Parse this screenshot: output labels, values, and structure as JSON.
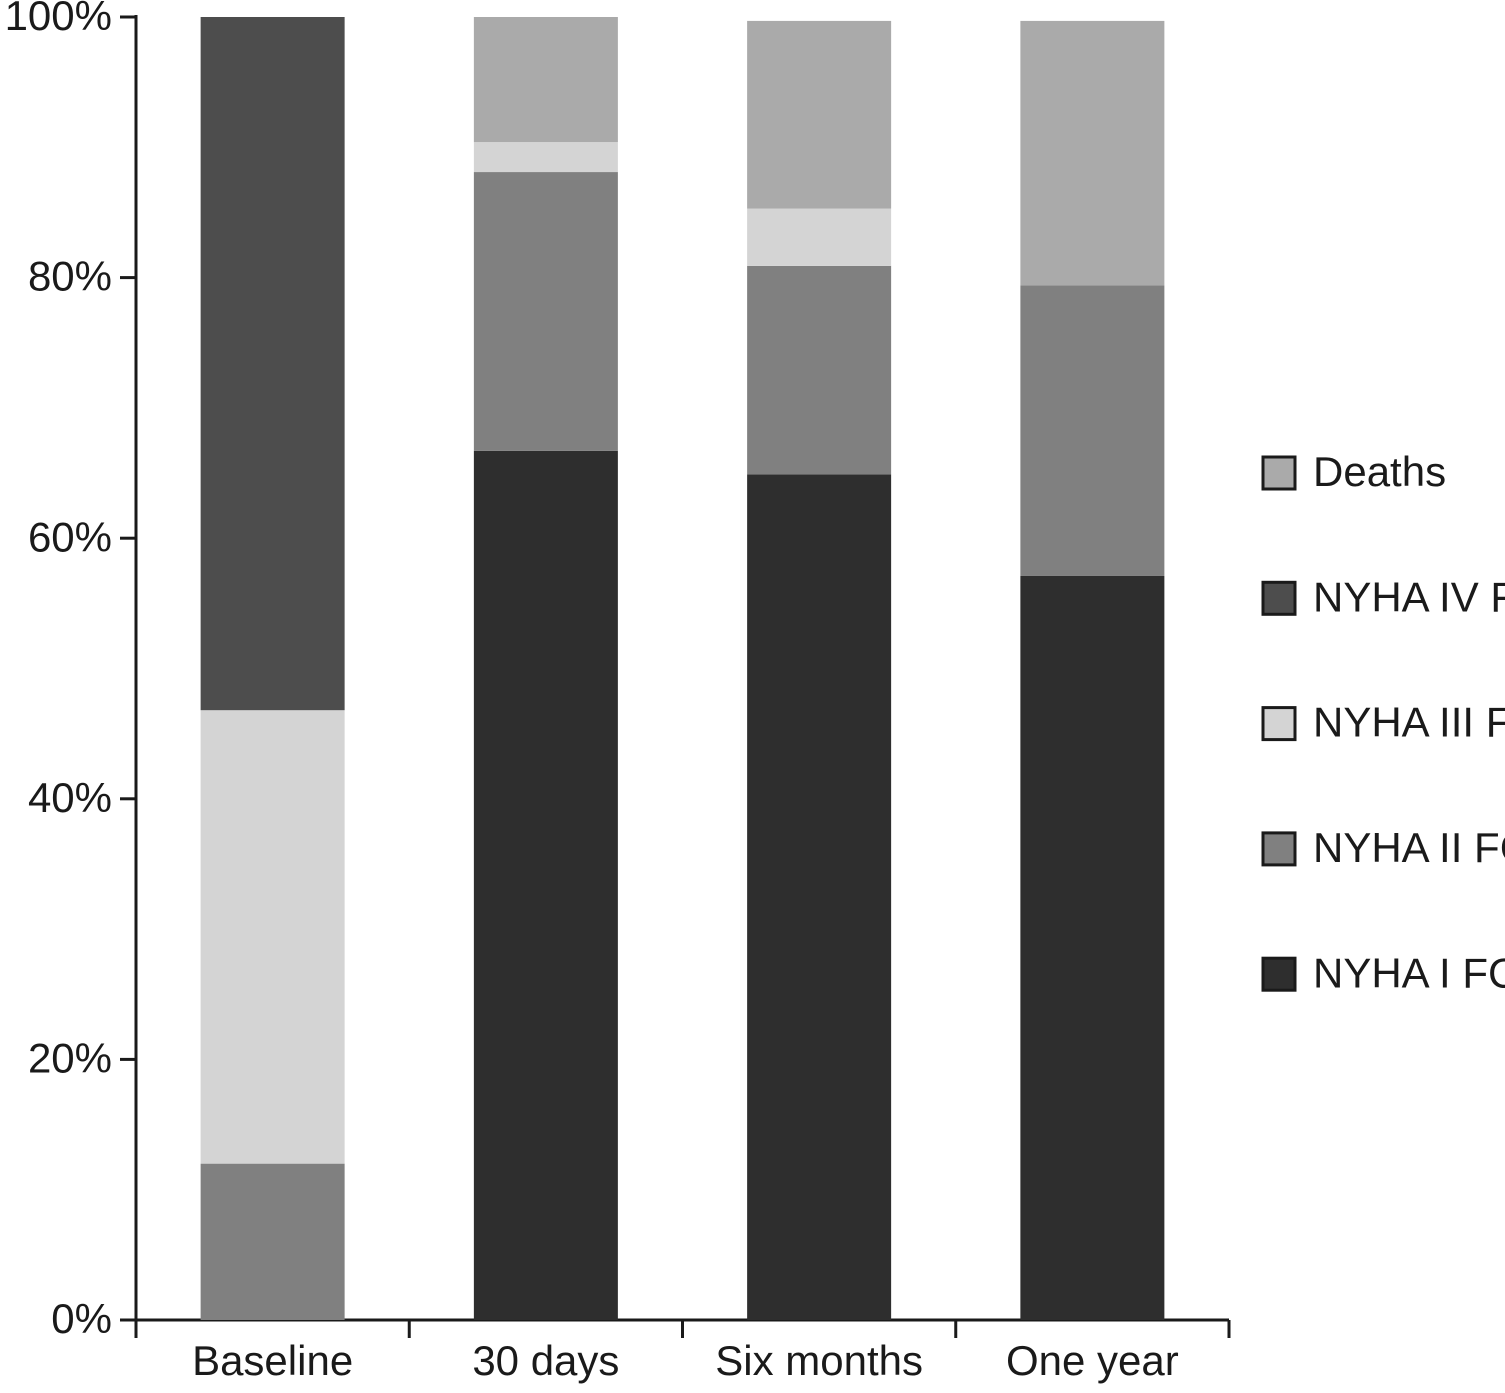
{
  "chart_data": {
    "type": "stacked-bar",
    "categories": [
      "Baseline",
      "30 days",
      "Six months",
      "One year"
    ],
    "series": [
      {
        "name": "NYHA I FC",
        "color": "#2e2e2e",
        "values": [
          0,
          66.7,
          64.9,
          57.1
        ]
      },
      {
        "name": "NYHA II FC",
        "color": "#808080",
        "values": [
          12.0,
          21.4,
          16.0,
          22.3
        ]
      },
      {
        "name": "NYHA III FC",
        "color": "#d4d4d4",
        "values": [
          34.8,
          2.3,
          4.4,
          0
        ]
      },
      {
        "name": "NYHA IV FC",
        "color": "#4d4d4d",
        "values": [
          53.2,
          0,
          0,
          0
        ]
      },
      {
        "name": "Deaths",
        "color": "#aaaaaa",
        "values": [
          0,
          9.6,
          14.4,
          20.3
        ]
      }
    ],
    "ylim": [
      0,
      100
    ],
    "yticks": [
      {
        "value": 0,
        "label": "0%"
      },
      {
        "value": 20,
        "label": "20%"
      },
      {
        "value": 40,
        "label": "40%"
      },
      {
        "value": 60,
        "label": "60%"
      },
      {
        "value": 80,
        "label": "80%"
      },
      {
        "value": 100,
        "label": "100%"
      }
    ],
    "grid": false,
    "legend": "right"
  }
}
